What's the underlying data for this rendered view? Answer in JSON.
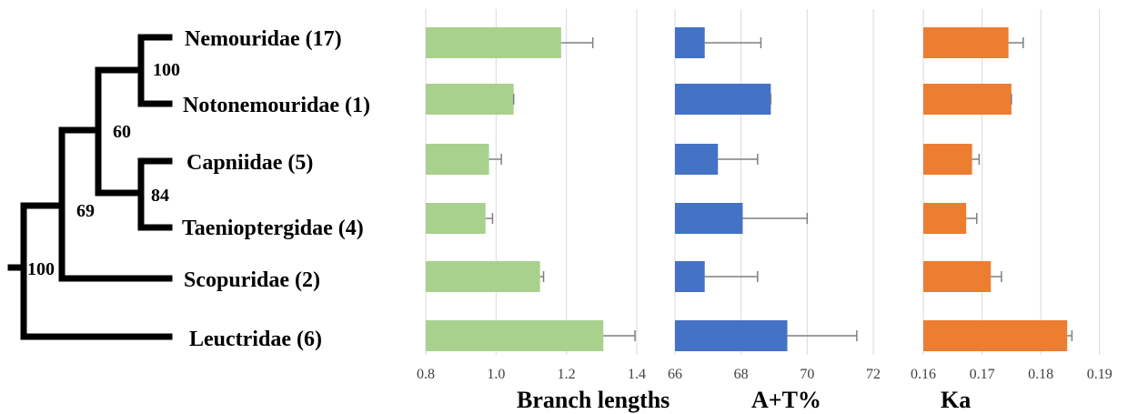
{
  "tree": {
    "taxa": [
      "Nemouridae (17)",
      "Notonemouridae (1)",
      "Capniidae (5)",
      "Taenioptergidae (4)",
      "Scopuridae (2)",
      "Leuctridae (6)"
    ],
    "support": [
      "100",
      "60",
      "84",
      "69",
      "100"
    ]
  },
  "chart_data": [
    {
      "type": "bar",
      "orientation": "horizontal",
      "xlabel": "Branch lengths",
      "categories": [
        "Nemouridae (17)",
        "Notonemouridae (1)",
        "Capniidae (5)",
        "Taenioptergidae (4)",
        "Scopuridae (2)",
        "Leuctridae (6)"
      ],
      "values": [
        1.185,
        1.05,
        0.98,
        0.97,
        1.125,
        1.305
      ],
      "errors": [
        0.09,
        0.0,
        0.035,
        0.02,
        0.01,
        0.09
      ],
      "xlim": [
        0.8,
        1.4
      ],
      "ticks": [
        "0.8",
        "1.0",
        "1.2",
        "1.4"
      ],
      "tick_values": [
        0.8,
        1.0,
        1.2,
        1.4
      ],
      "color": "#a9d18e",
      "grid": true
    },
    {
      "type": "bar",
      "orientation": "horizontal",
      "xlabel": "A+T%",
      "categories": [
        "Nemouridae (17)",
        "Notonemouridae (1)",
        "Capniidae (5)",
        "Taenioptergidae (4)",
        "Scopuridae (2)",
        "Leuctridae (6)"
      ],
      "values": [
        66.9,
        68.9,
        67.3,
        68.05,
        66.9,
        69.4
      ],
      "errors": [
        1.7,
        0.0,
        1.2,
        1.95,
        1.6,
        2.1
      ],
      "xlim": [
        66,
        72
      ],
      "ticks": [
        "66",
        "68",
        "70",
        "72"
      ],
      "tick_values": [
        66,
        68,
        70,
        72
      ],
      "color": "#4472c4",
      "grid": true
    },
    {
      "type": "bar",
      "orientation": "horizontal",
      "xlabel": "Ka",
      "categories": [
        "Nemouridae (17)",
        "Notonemouridae (1)",
        "Capniidae (5)",
        "Taenioptergidae (4)",
        "Scopuridae (2)",
        "Leuctridae (6)"
      ],
      "values": [
        0.1745,
        0.175,
        0.1683,
        0.1673,
        0.1715,
        0.1845
      ],
      "errors": [
        0.0025,
        0.0,
        0.0012,
        0.0018,
        0.0018,
        0.0008
      ],
      "xlim": [
        0.16,
        0.195
      ],
      "ticks": [
        "0.16",
        "0.17",
        "0.18",
        "0.19"
      ],
      "tick_values": [
        0.16,
        0.17,
        0.18,
        0.19
      ],
      "color": "#ed7d31",
      "grid": true
    }
  ]
}
